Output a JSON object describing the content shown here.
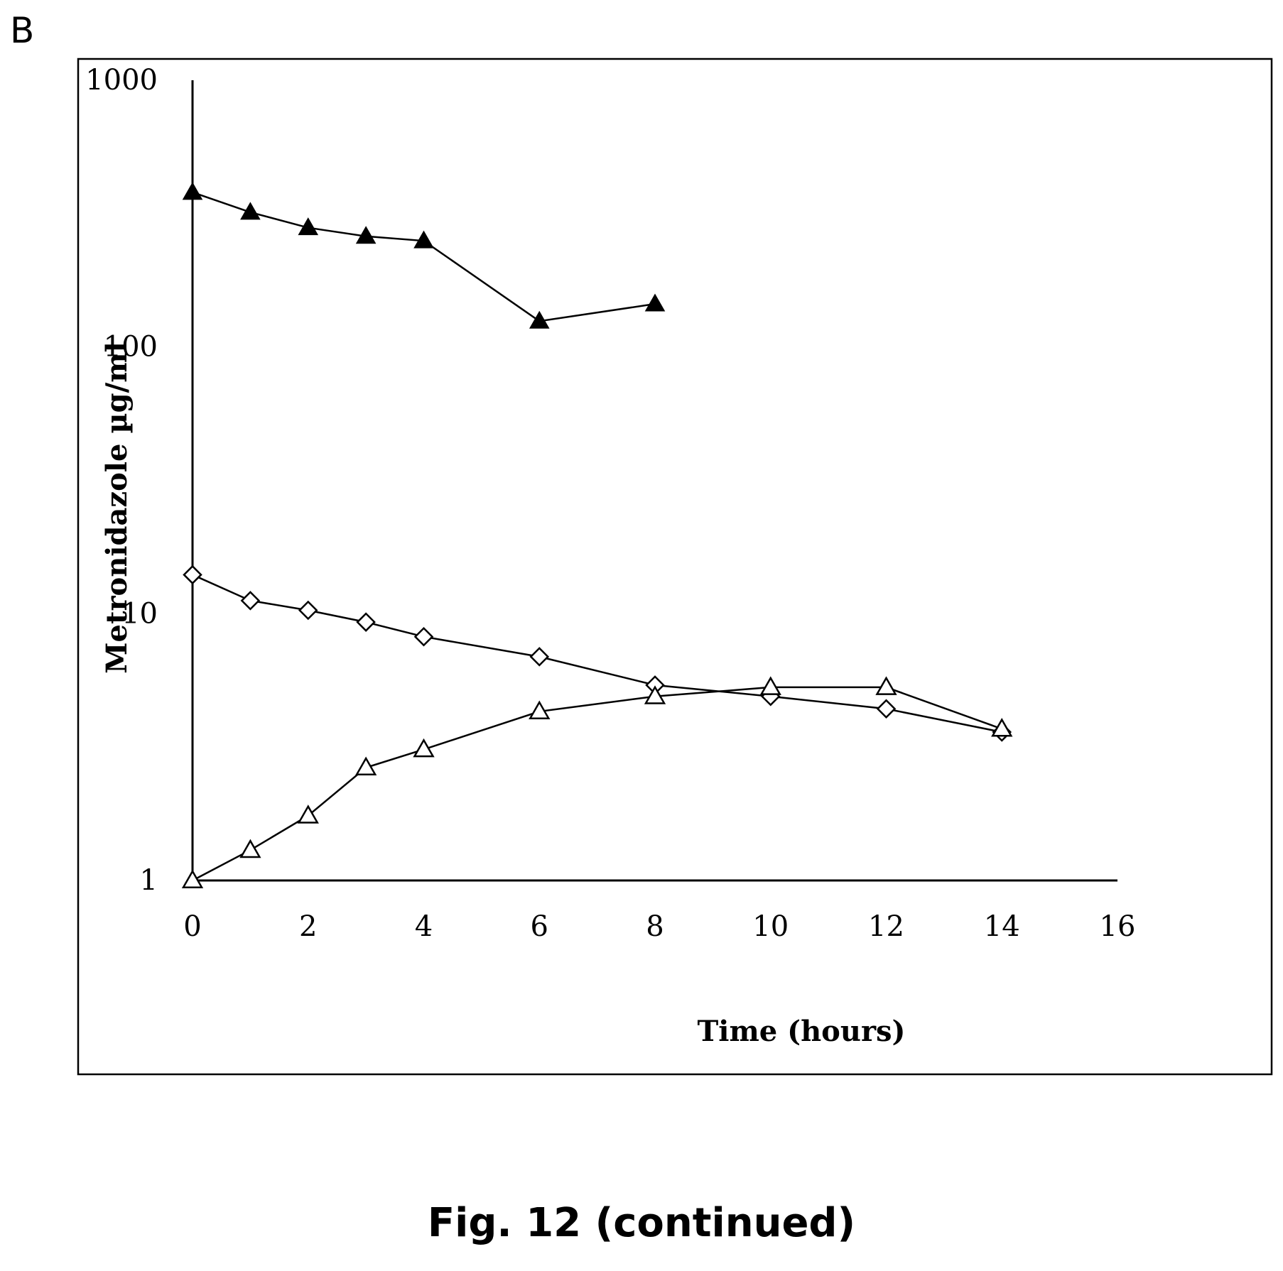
{
  "panel_label": "B",
  "caption": "Fig. 12 (continued)",
  "chart_data": {
    "type": "line",
    "title": "",
    "xlabel": "Time (hours)",
    "ylabel": "Metronidazole  µg/ml",
    "xlim": [
      0,
      16
    ],
    "ylim": [
      1,
      1000
    ],
    "yscale": "log",
    "x_ticks": [
      "0",
      "2",
      "4",
      "6",
      "8",
      "10",
      "12",
      "14",
      "16"
    ],
    "y_ticks": [
      "1",
      "10",
      "100",
      "1000"
    ],
    "grid": false,
    "legend": "none",
    "series": [
      {
        "marker": "filled-triangle",
        "color": "#000000",
        "x": [
          0,
          1,
          2,
          3,
          4,
          6,
          8
        ],
        "y": [
          380,
          320,
          280,
          260,
          250,
          125,
          145
        ]
      },
      {
        "marker": "open-diamond",
        "color": "#000000",
        "x": [
          0,
          1,
          2,
          3,
          4,
          6,
          8,
          10,
          12,
          14
        ],
        "y": [
          14,
          11.2,
          10.3,
          9.3,
          8.2,
          6.9,
          5.4,
          4.9,
          4.4,
          3.6
        ]
      },
      {
        "marker": "open-triangle",
        "color": "#000000",
        "x": [
          0,
          1,
          2,
          3,
          4,
          6,
          8,
          10,
          12,
          14
        ],
        "y": [
          1,
          1.3,
          1.75,
          2.65,
          3.1,
          4.3,
          4.9,
          5.3,
          5.3,
          3.7
        ]
      }
    ]
  }
}
